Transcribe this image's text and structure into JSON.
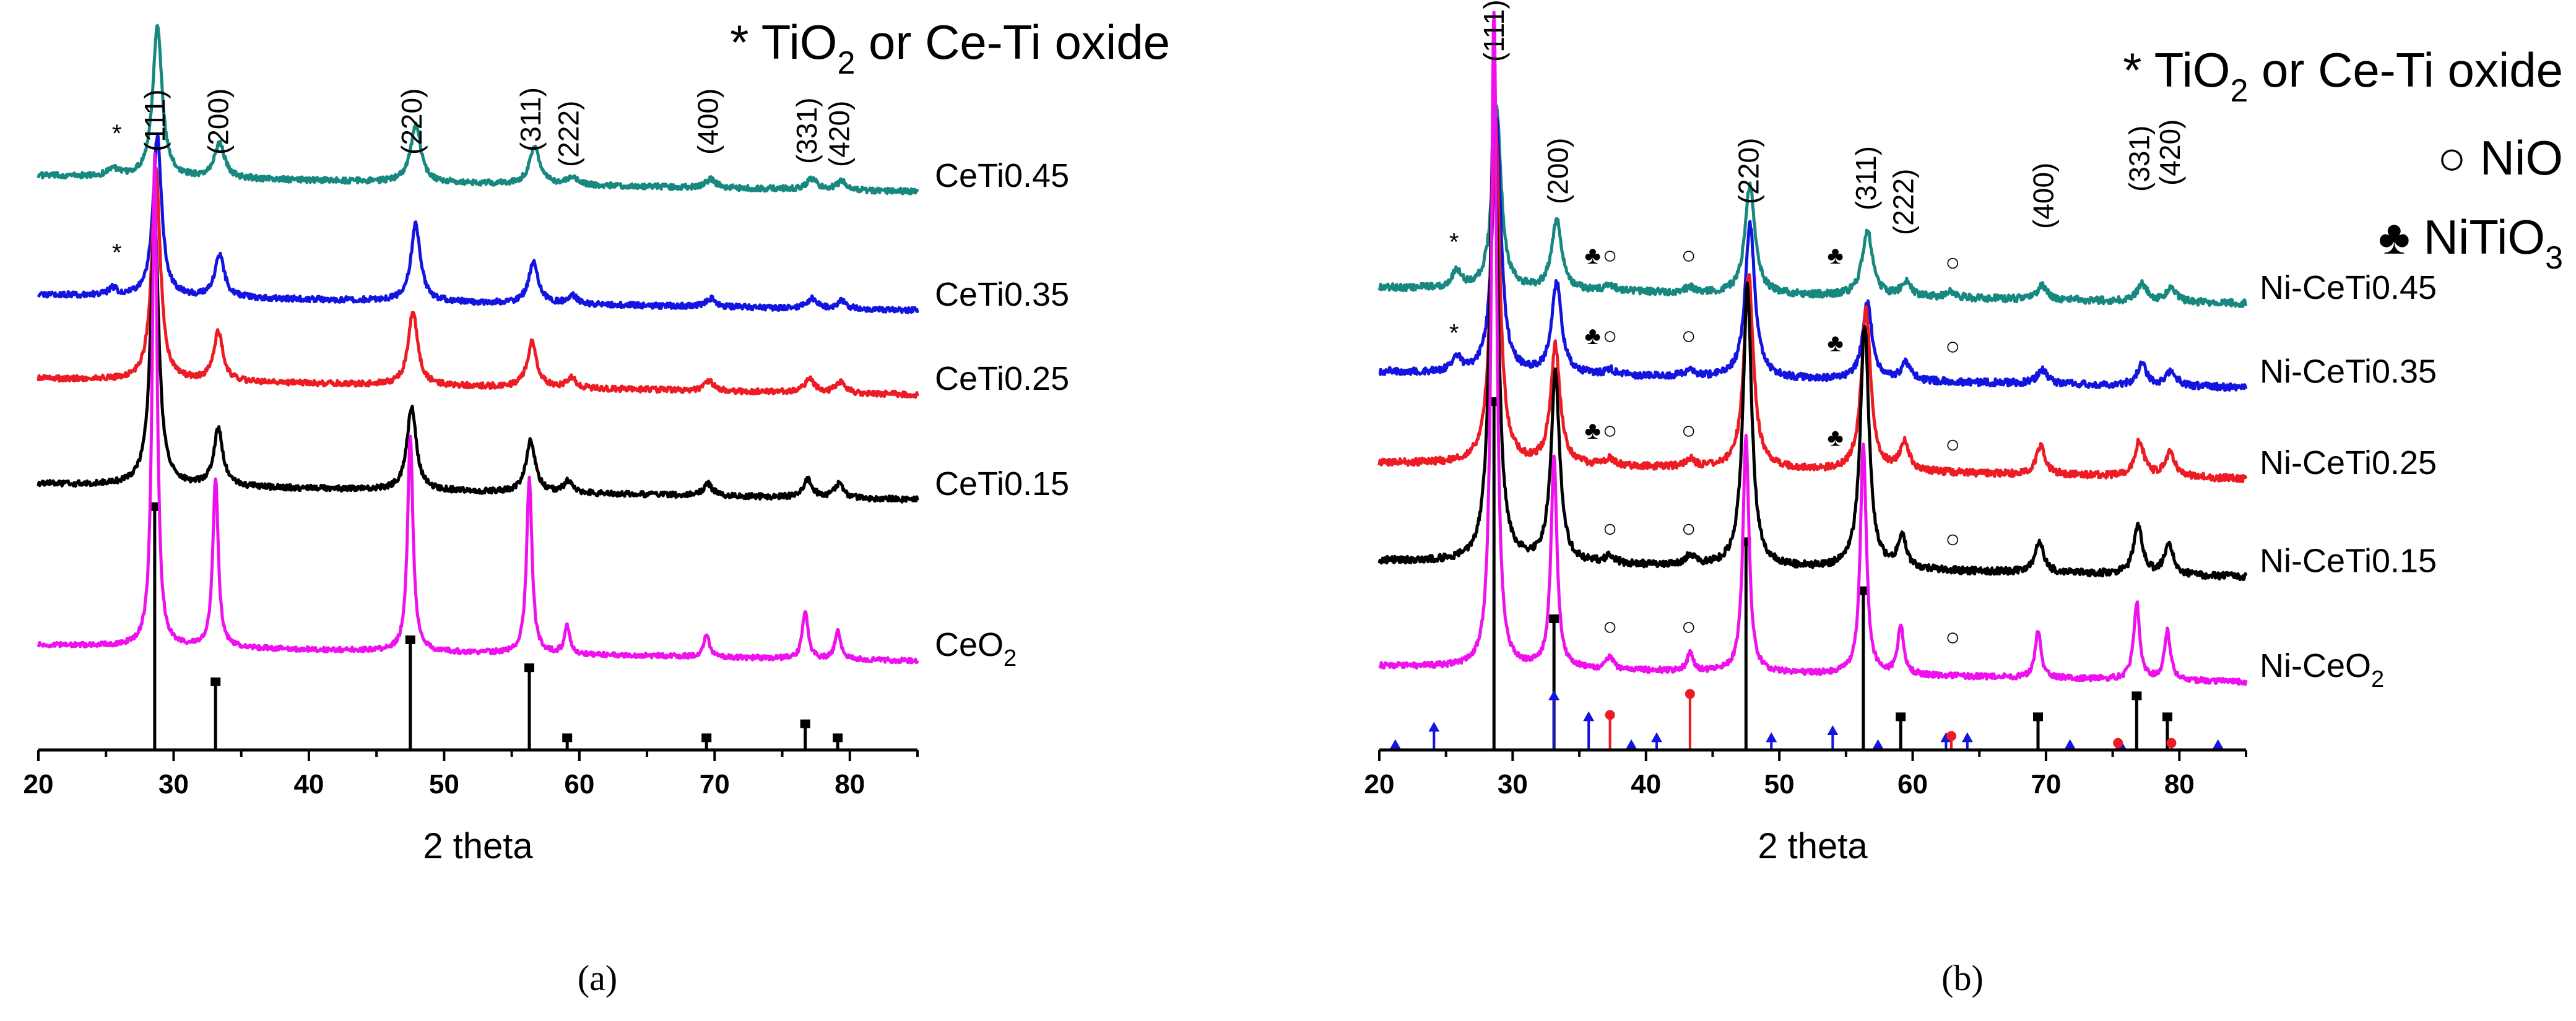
{
  "chart_data": [
    {
      "id": "a",
      "type": "line",
      "panel_label": "(a)",
      "xlabel": "2 theta",
      "ylabel": "",
      "xlim": [
        20,
        85
      ],
      "xticks": [
        20,
        30,
        40,
        50,
        60,
        70,
        80
      ],
      "legend": [
        {
          "symbol": "*",
          "text": "TiO",
          "sub": "2",
          "tail": " or Ce-Ti oxide"
        }
      ],
      "peak_labels": [
        {
          "text": "(111)",
          "x": 28.6
        },
        {
          "text": "(200)",
          "x": 33.3
        },
        {
          "text": "(220)",
          "x": 47.6
        },
        {
          "text": "(311)",
          "x": 56.4
        },
        {
          "text": "(222)",
          "x": 59.2
        },
        {
          "text": "(400)",
          "x": 69.5
        },
        {
          "text": "(331)",
          "x": 76.8
        },
        {
          "text": "(420)",
          "x": 79.2
        }
      ],
      "series": [
        {
          "name": "CeTi0.45",
          "label": "CeTi0.45",
          "label_sub": "",
          "color": "#17887f",
          "baseline": 0.82,
          "width": 0.75,
          "noise": 0.004,
          "peaks": [
            {
              "x": 28.8,
              "h": 0.22
            },
            {
              "x": 33.4,
              "h": 0.05
            },
            {
              "x": 47.9,
              "h": 0.083
            },
            {
              "x": 56.7,
              "h": 0.055
            },
            {
              "x": 59.5,
              "h": 0.012
            },
            {
              "x": 69.7,
              "h": 0.012
            },
            {
              "x": 77.2,
              "h": 0.015
            },
            {
              "x": 79.4,
              "h": 0.012
            },
            {
              "x": 25.5,
              "h": 0.012
            }
          ]
        },
        {
          "name": "CeTi0.35",
          "label": "CeTi0.35",
          "label_sub": "",
          "color": "#1414e0",
          "baseline": 0.65,
          "width": 0.7,
          "noise": 0.004,
          "peaks": [
            {
              "x": 28.8,
              "h": 0.23
            },
            {
              "x": 33.4,
              "h": 0.06
            },
            {
              "x": 47.9,
              "h": 0.11
            },
            {
              "x": 56.6,
              "h": 0.06
            },
            {
              "x": 59.5,
              "h": 0.012
            },
            {
              "x": 69.7,
              "h": 0.012
            },
            {
              "x": 77.2,
              "h": 0.015
            },
            {
              "x": 79.4,
              "h": 0.012
            },
            {
              "x": 25.5,
              "h": 0.01
            }
          ]
        },
        {
          "name": "CeTi0.25",
          "label": "CeTi0.25",
          "label_sub": "",
          "color": "#ed1b24",
          "baseline": 0.53,
          "width": 0.7,
          "noise": 0.004,
          "peaks": [
            {
              "x": 28.7,
              "h": 0.3
            },
            {
              "x": 33.3,
              "h": 0.07
            },
            {
              "x": 47.7,
              "h": 0.105
            },
            {
              "x": 56.5,
              "h": 0.065
            },
            {
              "x": 59.4,
              "h": 0.014
            },
            {
              "x": 69.6,
              "h": 0.014
            },
            {
              "x": 77.0,
              "h": 0.02
            },
            {
              "x": 79.3,
              "h": 0.016
            }
          ]
        },
        {
          "name": "CeTi0.15",
          "label": "CeTi0.15",
          "label_sub": "",
          "color": "#000000",
          "baseline": 0.38,
          "width": 0.68,
          "noise": 0.004,
          "peaks": [
            {
              "x": 28.6,
              "h": 0.38
            },
            {
              "x": 33.3,
              "h": 0.082
            },
            {
              "x": 47.6,
              "h": 0.12
            },
            {
              "x": 56.4,
              "h": 0.075
            },
            {
              "x": 59.2,
              "h": 0.017
            },
            {
              "x": 69.5,
              "h": 0.017
            },
            {
              "x": 76.9,
              "h": 0.025
            },
            {
              "x": 79.2,
              "h": 0.02
            }
          ]
        },
        {
          "name": "CeO2",
          "label": "CeO",
          "label_sub": "2",
          "color": "#ee11ee",
          "baseline": 0.15,
          "width": 0.4,
          "noise": 0.0035,
          "peaks": [
            {
              "x": 28.6,
              "h": 0.7
            },
            {
              "x": 33.1,
              "h": 0.24
            },
            {
              "x": 47.5,
              "h": 0.31
            },
            {
              "x": 56.3,
              "h": 0.25
            },
            {
              "x": 59.1,
              "h": 0.04
            },
            {
              "x": 69.4,
              "h": 0.033
            },
            {
              "x": 76.7,
              "h": 0.07
            },
            {
              "x": 79.1,
              "h": 0.042
            }
          ]
        }
      ],
      "reference_bars": [
        {
          "x": 28.6,
          "h": 0.35,
          "color": "#000000"
        },
        {
          "x": 33.1,
          "h": 0.1,
          "color": "#000000"
        },
        {
          "x": 47.5,
          "h": 0.16,
          "color": "#000000"
        },
        {
          "x": 56.3,
          "h": 0.12,
          "color": "#000000"
        },
        {
          "x": 59.1,
          "h": 0.02,
          "color": "#000000"
        },
        {
          "x": 69.4,
          "h": 0.02,
          "color": "#000000"
        },
        {
          "x": 76.7,
          "h": 0.04,
          "color": "#000000"
        },
        {
          "x": 79.1,
          "h": 0.02,
          "color": "#000000"
        }
      ],
      "markers": [
        {
          "text": "*",
          "x": 25.8,
          "y": 0.895
        },
        {
          "text": "*",
          "x": 25.8,
          "y": 0.725
        }
      ]
    },
    {
      "id": "b",
      "type": "line",
      "panel_label": "(b)",
      "xlabel": "2 theta",
      "ylabel": "",
      "xlim": [
        20,
        85
      ],
      "xticks": [
        20,
        30,
        40,
        50,
        60,
        70,
        80
      ],
      "legend": [
        {
          "symbol": "*",
          "text": "TiO",
          "sub": "2",
          "tail": " or Ce-Ti oxide"
        },
        {
          "symbol": "○",
          "text": "NiO",
          "sub": "",
          "tail": ""
        },
        {
          "symbol": "♣",
          "text": "NiTiO",
          "sub": "3",
          "tail": ""
        }
      ],
      "peak_labels": [
        {
          "text": "(111)",
          "x": 28.6
        },
        {
          "text": "(200)",
          "x": 33.4
        },
        {
          "text": "(220)",
          "x": 47.7
        },
        {
          "text": "(311)",
          "x": 56.5
        },
        {
          "text": "(222)",
          "x": 59.3
        },
        {
          "text": "(400)",
          "x": 69.8
        },
        {
          "text": "(331)",
          "x": 77.0
        },
        {
          "text": "(420)",
          "x": 79.3
        }
      ],
      "series": [
        {
          "name": "Ni-CeTi0.45",
          "label": "Ni-CeTi0.45",
          "label_sub": "",
          "color": "#17887f",
          "baseline": 0.66,
          "width": 0.75,
          "noise": 0.005,
          "peaks": [
            {
              "x": 28.8,
              "h": 0.26
            },
            {
              "x": 33.3,
              "h": 0.1
            },
            {
              "x": 47.8,
              "h": 0.155
            },
            {
              "x": 56.6,
              "h": 0.095
            },
            {
              "x": 59.5,
              "h": 0.02
            },
            {
              "x": 69.7,
              "h": 0.02
            },
            {
              "x": 77.2,
              "h": 0.025
            },
            {
              "x": 79.4,
              "h": 0.02
            },
            {
              "x": 25.8,
              "h": 0.025
            },
            {
              "x": 37.3,
              "h": 0.008
            },
            {
              "x": 43.3,
              "h": 0.008
            },
            {
              "x": 62.9,
              "h": 0.008
            }
          ]
        },
        {
          "name": "Ni-CeTi0.35",
          "label": "Ni-CeTi0.35",
          "label_sub": "",
          "color": "#1414e0",
          "baseline": 0.54,
          "width": 0.72,
          "noise": 0.005,
          "peaks": [
            {
              "x": 28.8,
              "h": 0.36
            },
            {
              "x": 33.3,
              "h": 0.13
            },
            {
              "x": 47.8,
              "h": 0.22
            },
            {
              "x": 56.6,
              "h": 0.11
            },
            {
              "x": 59.5,
              "h": 0.025
            },
            {
              "x": 69.7,
              "h": 0.02
            },
            {
              "x": 77.2,
              "h": 0.03
            },
            {
              "x": 79.4,
              "h": 0.022
            },
            {
              "x": 25.8,
              "h": 0.02
            },
            {
              "x": 37.3,
              "h": 0.008
            },
            {
              "x": 43.3,
              "h": 0.01
            }
          ]
        },
        {
          "name": "Ni-CeTi0.25",
          "label": "Ni-CeTi0.25",
          "label_sub": "",
          "color": "#ed1b24",
          "baseline": 0.41,
          "width": 0.7,
          "noise": 0.005,
          "peaks": [
            {
              "x": 28.7,
              "h": 0.5
            },
            {
              "x": 33.2,
              "h": 0.17
            },
            {
              "x": 47.7,
              "h": 0.28
            },
            {
              "x": 56.5,
              "h": 0.23
            },
            {
              "x": 59.4,
              "h": 0.04
            },
            {
              "x": 69.6,
              "h": 0.04
            },
            {
              "x": 77.0,
              "h": 0.05
            },
            {
              "x": 79.3,
              "h": 0.035
            },
            {
              "x": 37.3,
              "h": 0.01
            },
            {
              "x": 43.3,
              "h": 0.012
            }
          ]
        },
        {
          "name": "Ni-CeTi0.15",
          "label": "Ni-CeTi0.15",
          "label_sub": "",
          "color": "#000000",
          "baseline": 0.27,
          "width": 0.65,
          "noise": 0.005,
          "peaks": [
            {
              "x": 28.6,
              "h": 0.68
            },
            {
              "x": 33.2,
              "h": 0.27
            },
            {
              "x": 47.6,
              "h": 0.4
            },
            {
              "x": 56.4,
              "h": 0.35
            },
            {
              "x": 59.2,
              "h": 0.045
            },
            {
              "x": 69.5,
              "h": 0.045
            },
            {
              "x": 76.9,
              "h": 0.07
            },
            {
              "x": 79.2,
              "h": 0.045
            },
            {
              "x": 37.3,
              "h": 0.012
            },
            {
              "x": 43.3,
              "h": 0.015
            }
          ]
        },
        {
          "name": "Ni-CeO2",
          "label": "Ni-CeO",
          "label_sub": "2",
          "color": "#ee11ee",
          "baseline": 0.12,
          "width": 0.45,
          "noise": 0.004,
          "peaks": [
            {
              "x": 28.6,
              "h": 0.95
            },
            {
              "x": 33.1,
              "h": 0.3
            },
            {
              "x": 47.5,
              "h": 0.34
            },
            {
              "x": 56.3,
              "h": 0.33
            },
            {
              "x": 59.1,
              "h": 0.07
            },
            {
              "x": 69.4,
              "h": 0.065
            },
            {
              "x": 76.8,
              "h": 0.11
            },
            {
              "x": 79.1,
              "h": 0.07
            },
            {
              "x": 37.3,
              "h": 0.02
            },
            {
              "x": 43.3,
              "h": 0.025
            }
          ]
        }
      ],
      "reference_bars": [
        {
          "x": 28.6,
          "h": 0.5,
          "color": "#000000"
        },
        {
          "x": 33.1,
          "h": 0.19,
          "color": "#000000"
        },
        {
          "x": 47.5,
          "h": 0.3,
          "color": "#000000"
        },
        {
          "x": 56.3,
          "h": 0.23,
          "color": "#000000"
        },
        {
          "x": 59.1,
          "h": 0.05,
          "color": "#000000"
        },
        {
          "x": 69.4,
          "h": 0.05,
          "color": "#000000"
        },
        {
          "x": 76.8,
          "h": 0.08,
          "color": "#000000"
        },
        {
          "x": 79.1,
          "h": 0.05,
          "color": "#000000"
        },
        {
          "x": 33.1,
          "h": 0.08,
          "color": "#1414e0"
        },
        {
          "x": 24.1,
          "h": 0.035,
          "color": "#1414e0"
        },
        {
          "x": 35.7,
          "h": 0.05,
          "color": "#1414e0"
        },
        {
          "x": 40.8,
          "h": 0.02,
          "color": "#1414e0"
        },
        {
          "x": 49.4,
          "h": 0.02,
          "color": "#1414e0"
        },
        {
          "x": 54.0,
          "h": 0.03,
          "color": "#1414e0"
        },
        {
          "x": 57.4,
          "h": 0.01,
          "color": "#1414e0"
        },
        {
          "x": 62.5,
          "h": 0.02,
          "color": "#1414e0"
        },
        {
          "x": 64.1,
          "h": 0.02,
          "color": "#1414e0"
        },
        {
          "x": 21.2,
          "h": 0.01,
          "color": "#1414e0"
        },
        {
          "x": 38.9,
          "h": 0.01,
          "color": "#1414e0"
        },
        {
          "x": 71.8,
          "h": 0.01,
          "color": "#1414e0"
        },
        {
          "x": 75.6,
          "h": 0.01,
          "color": "#1414e0"
        },
        {
          "x": 82.9,
          "h": 0.01,
          "color": "#1414e0"
        },
        {
          "x": 37.3,
          "h": 0.05,
          "color": "#ed1b24"
        },
        {
          "x": 43.3,
          "h": 0.08,
          "color": "#ed1b24"
        },
        {
          "x": 62.9,
          "h": 0.02,
          "color": "#ed1b24"
        },
        {
          "x": 75.4,
          "h": 0.01,
          "color": "#ed1b24"
        },
        {
          "x": 79.4,
          "h": 0.01,
          "color": "#ed1b24"
        }
      ],
      "markers": [
        {
          "text": "*",
          "x": 25.6,
          "y": 0.74
        },
        {
          "text": "*",
          "x": 25.6,
          "y": 0.61
        },
        {
          "text": "♣",
          "x": 36.0,
          "y": 0.705
        },
        {
          "text": "○",
          "x": 37.3,
          "y": 0.705
        },
        {
          "text": "○",
          "x": 43.2,
          "y": 0.705
        },
        {
          "text": "♣",
          "x": 54.2,
          "y": 0.705
        },
        {
          "text": "○",
          "x": 63.0,
          "y": 0.695
        },
        {
          "text": "♣",
          "x": 36.0,
          "y": 0.59
        },
        {
          "text": "○",
          "x": 37.3,
          "y": 0.59
        },
        {
          "text": "○",
          "x": 43.2,
          "y": 0.59
        },
        {
          "text": "♣",
          "x": 54.2,
          "y": 0.58
        },
        {
          "text": "○",
          "x": 63.0,
          "y": 0.575
        },
        {
          "text": "♣",
          "x": 36.0,
          "y": 0.455
        },
        {
          "text": "○",
          "x": 37.3,
          "y": 0.455
        },
        {
          "text": "○",
          "x": 43.2,
          "y": 0.455
        },
        {
          "text": "♣",
          "x": 54.2,
          "y": 0.445
        },
        {
          "text": "○",
          "x": 63.0,
          "y": 0.435
        },
        {
          "text": "○",
          "x": 37.3,
          "y": 0.315
        },
        {
          "text": "○",
          "x": 43.2,
          "y": 0.315
        },
        {
          "text": "○",
          "x": 63.0,
          "y": 0.3
        },
        {
          "text": "○",
          "x": 37.3,
          "y": 0.175
        },
        {
          "text": "○",
          "x": 43.2,
          "y": 0.175
        },
        {
          "text": "○",
          "x": 63.0,
          "y": 0.16
        }
      ]
    }
  ]
}
